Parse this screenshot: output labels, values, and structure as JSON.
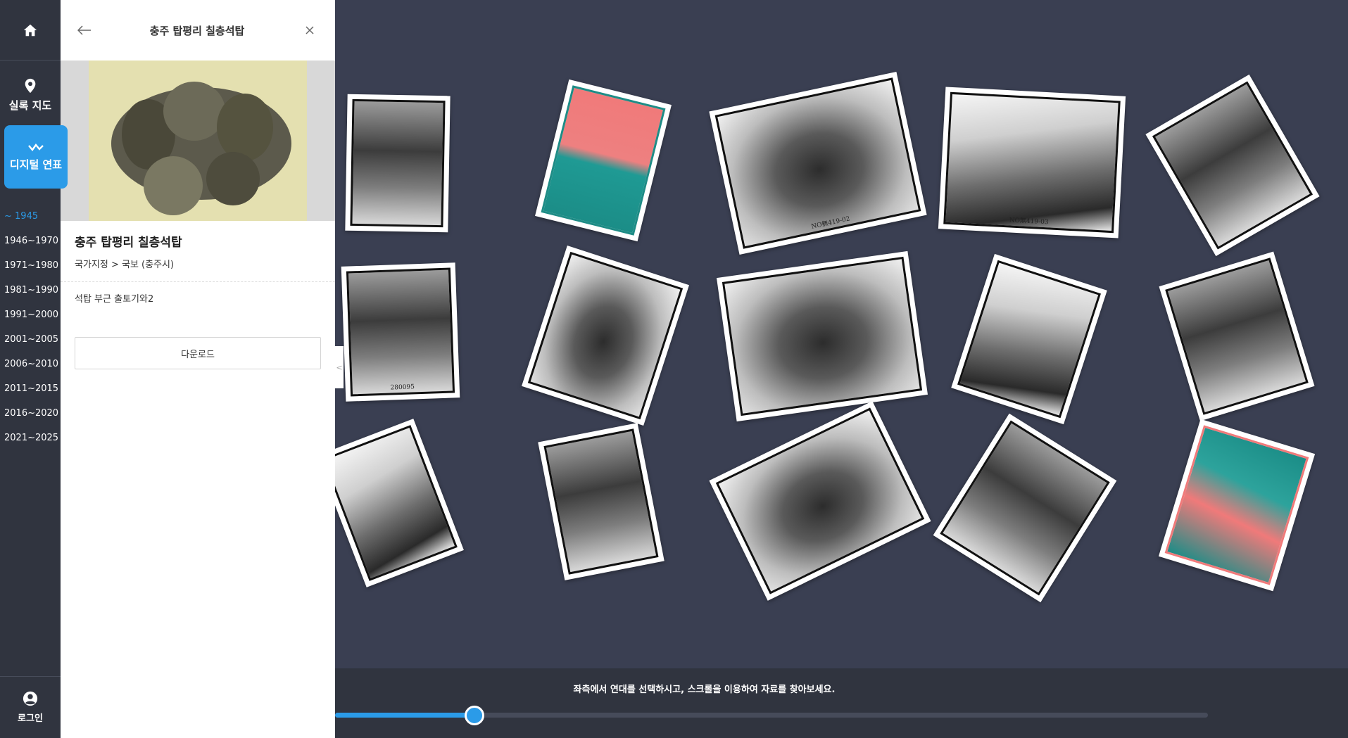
{
  "rail": {
    "map_label": "실록 지도",
    "timeline_label": "디지털 연표",
    "years": [
      "~ 1945",
      "1946~1970",
      "1971~1980",
      "1981~1990",
      "1991~2000",
      "2001~2005",
      "2006~2010",
      "2011~2015",
      "2016~2020",
      "2021~2025"
    ],
    "active_year": "~ 1945",
    "login_label": "로그인"
  },
  "panel": {
    "header_title": "충주 탑평리 칠층석탑",
    "name": "충주 탑평리 칠층석탑",
    "category": "국가지정 > 국보 (충주시)",
    "description": "석탑 부근 출토기와2",
    "download_label": "다운로드"
  },
  "gallery": {
    "captions": [
      "NO無419-02",
      "NO無419-03",
      "280095"
    ]
  },
  "timeline": {
    "hint": "좌측에서 연대를 선택하시고, 스크롤을 이용하여 자료를 찾아보세요.",
    "position": 0.16
  },
  "colors": {
    "accent": "#2b9be8",
    "rail_bg": "#30343f",
    "gallery_bg": "#3a3f52"
  }
}
